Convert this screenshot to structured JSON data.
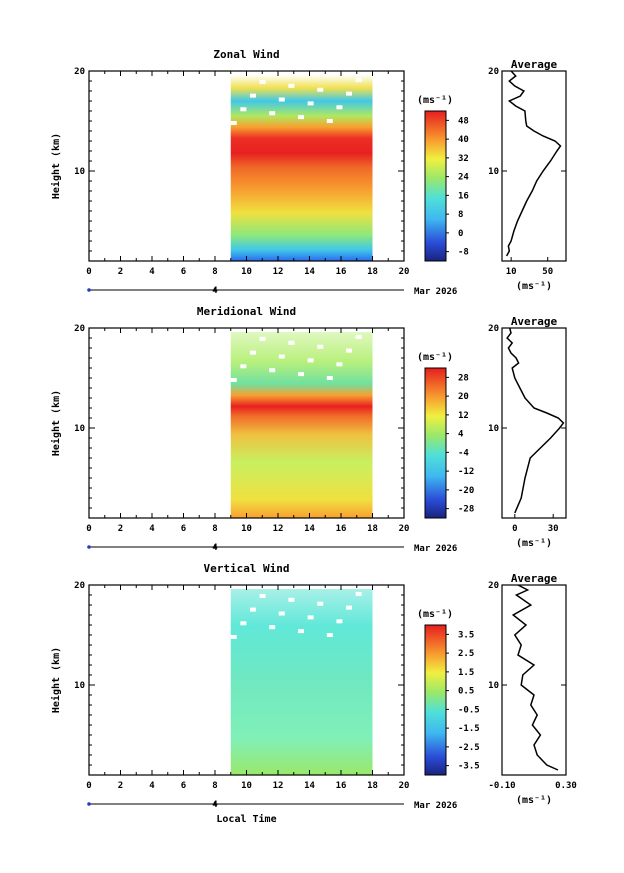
{
  "figure": {
    "xlabel": "Local Time"
  },
  "chart_data": [
    {
      "type": "heatmap",
      "title": "Zonal Wind",
      "ylabel": "Height (km)",
      "xlabel": "Local Time",
      "x_ticks": [
        0,
        2,
        4,
        6,
        8,
        10,
        12,
        14,
        16,
        18,
        20
      ],
      "y_ticks": [
        10,
        20
      ],
      "xlim": [
        0,
        20
      ],
      "ylim": [
        1,
        20
      ],
      "date_axis": {
        "day": "4",
        "month_year": "Mar 2026"
      },
      "data_x_range": [
        9,
        18
      ],
      "colorbar": {
        "unit": "(ms⁻¹)",
        "ticks": [
          48,
          40,
          32,
          24,
          16,
          8,
          0,
          -8
        ],
        "range": [
          -12,
          52
        ]
      },
      "average": {
        "title": "Average",
        "x_ticks": [
          10,
          50
        ],
        "xlim": [
          0,
          70
        ],
        "xlabel": "(ms⁻¹)",
        "profile": [
          [
            5,
            1.5
          ],
          [
            8,
            2
          ],
          [
            7,
            2.5
          ],
          [
            10,
            3
          ],
          [
            13,
            4
          ],
          [
            17,
            5
          ],
          [
            22,
            6
          ],
          [
            27,
            7
          ],
          [
            33,
            8
          ],
          [
            38,
            9
          ],
          [
            45,
            10
          ],
          [
            53,
            11
          ],
          [
            60,
            12
          ],
          [
            64,
            12.5
          ],
          [
            58,
            13
          ],
          [
            45,
            13.5
          ],
          [
            35,
            14
          ],
          [
            27,
            14.5
          ],
          [
            26,
            15
          ],
          [
            25,
            16
          ],
          [
            15,
            16.5
          ],
          [
            8,
            17
          ],
          [
            20,
            17.5
          ],
          [
            24,
            18
          ],
          [
            14,
            18.5
          ],
          [
            8,
            19
          ],
          [
            15,
            19.5
          ],
          [
            10,
            20
          ]
        ]
      }
    },
    {
      "type": "heatmap",
      "title": "Meridional Wind",
      "ylabel": "Height (km)",
      "xlabel": "Local Time",
      "x_ticks": [
        0,
        2,
        4,
        6,
        8,
        10,
        12,
        14,
        16,
        18,
        20
      ],
      "y_ticks": [
        10,
        20
      ],
      "xlim": [
        0,
        20
      ],
      "ylim": [
        1,
        20
      ],
      "date_axis": {
        "day": "4",
        "month_year": "Mar 2026"
      },
      "data_x_range": [
        9,
        18
      ],
      "colorbar": {
        "unit": "(ms⁻¹)",
        "ticks": [
          28,
          20,
          12,
          4,
          -4,
          -12,
          -20,
          -28
        ],
        "range": [
          -32,
          32
        ]
      },
      "average": {
        "title": "Average",
        "x_ticks": [
          0,
          30
        ],
        "xlim": [
          -10,
          40
        ],
        "xlabel": "(ms⁻¹)",
        "profile": [
          [
            0,
            1.5
          ],
          [
            5,
            3
          ],
          [
            8,
            5
          ],
          [
            12,
            7
          ],
          [
            20,
            8
          ],
          [
            28,
            9
          ],
          [
            35,
            10
          ],
          [
            38,
            10.5
          ],
          [
            34,
            11
          ],
          [
            25,
            11.5
          ],
          [
            15,
            12
          ],
          [
            8,
            13
          ],
          [
            4,
            14
          ],
          [
            0,
            15
          ],
          [
            -2,
            16
          ],
          [
            3,
            16.5
          ],
          [
            1,
            17
          ],
          [
            -3,
            17.5
          ],
          [
            -5,
            18
          ],
          [
            -2,
            18.5
          ],
          [
            -6,
            19
          ],
          [
            -3,
            19.5
          ],
          [
            -4,
            20
          ]
        ]
      }
    },
    {
      "type": "heatmap",
      "title": "Vertical Wind",
      "ylabel": "Height (km)",
      "xlabel": "Local Time",
      "x_ticks": [
        0,
        2,
        4,
        6,
        8,
        10,
        12,
        14,
        16,
        18,
        20
      ],
      "y_ticks": [
        10,
        20
      ],
      "xlim": [
        0,
        20
      ],
      "ylim": [
        1,
        20
      ],
      "date_axis": {
        "day": "4",
        "month_year": "Mar 2026"
      },
      "data_x_range": [
        9,
        18
      ],
      "colorbar": {
        "unit": "(ms⁻¹)",
        "ticks": [
          3.5,
          2.5,
          1.5,
          0.5,
          -0.5,
          -1.5,
          -2.5,
          -3.5
        ],
        "range": [
          -4,
          4
        ]
      },
      "average": {
        "title": "Average",
        "x_ticks": [
          -0.1,
          0.3
        ],
        "x_tick_labels": [
          "-0.10",
          "0.30"
        ],
        "xlim": [
          -0.1,
          0.3
        ],
        "xlabel": "(ms⁻¹)",
        "profile": [
          [
            0.25,
            1.5
          ],
          [
            0.18,
            2
          ],
          [
            0.12,
            3
          ],
          [
            0.1,
            4
          ],
          [
            0.14,
            5
          ],
          [
            0.09,
            6
          ],
          [
            0.12,
            7
          ],
          [
            0.08,
            8
          ],
          [
            0.1,
            9
          ],
          [
            0.02,
            10
          ],
          [
            0.03,
            11
          ],
          [
            0.1,
            12
          ],
          [
            0.0,
            13
          ],
          [
            0.02,
            14
          ],
          [
            -0.02,
            15
          ],
          [
            0.05,
            16
          ],
          [
            -0.03,
            17
          ],
          [
            0.08,
            18
          ],
          [
            -0.01,
            19
          ],
          [
            0.06,
            19.5
          ],
          [
            0.0,
            20
          ]
        ]
      }
    }
  ]
}
